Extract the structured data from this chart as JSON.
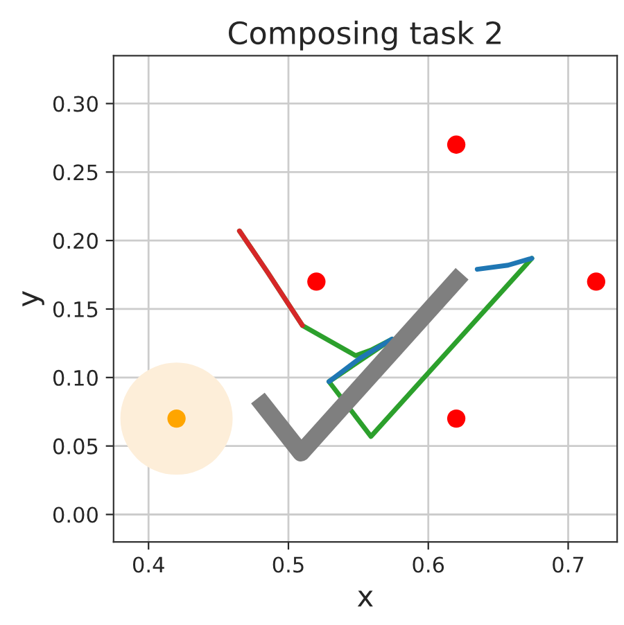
{
  "chart_data": {
    "type": "line",
    "title": "Composing task 2",
    "xlabel": "x",
    "ylabel": "y",
    "xlim": [
      0.375,
      0.735
    ],
    "ylim": [
      -0.02,
      0.335
    ],
    "xticks": [
      {
        "value": 0.4,
        "label": "0.4"
      },
      {
        "value": 0.5,
        "label": "0.5"
      },
      {
        "value": 0.6,
        "label": "0.6"
      },
      {
        "value": 0.7,
        "label": "0.7"
      }
    ],
    "yticks": [
      {
        "value": 0.0,
        "label": "0.00"
      },
      {
        "value": 0.05,
        "label": "0.05"
      },
      {
        "value": 0.1,
        "label": "0.10"
      },
      {
        "value": 0.15,
        "label": "0.15"
      },
      {
        "value": 0.2,
        "label": "0.20"
      },
      {
        "value": 0.25,
        "label": "0.25"
      },
      {
        "value": 0.3,
        "label": "0.30"
      }
    ],
    "grid": true,
    "series": [
      {
        "type": "bubble",
        "color": "#fdeed9",
        "x": [
          0.42
        ],
        "values": [
          0.07
        ],
        "sizes": [
          1
        ]
      },
      {
        "color": "#2ca02c",
        "x": [
          0.465,
          0.485,
          0.51,
          0.548,
          0.559,
          0.574,
          0.529,
          0.559,
          0.674
        ],
        "values": [
          0.207,
          0.177,
          0.138,
          0.116,
          0.12,
          0.128,
          0.097,
          0.057,
          0.187
        ]
      },
      {
        "color": "#d62728",
        "x": [
          0.465,
          0.485,
          0.51
        ],
        "values": [
          0.207,
          0.177,
          0.138
        ]
      },
      {
        "color": "#1f77b4",
        "x": [
          0.529,
          0.551,
          0.574,
          null,
          0.635,
          0.657,
          0.674
        ],
        "values": [
          0.097,
          0.114,
          0.128,
          null,
          0.179,
          0.182,
          0.187
        ]
      },
      {
        "color": "#7f7f7f",
        "x": [
          0.482,
          0.509,
          0.62
        ],
        "values": [
          0.08,
          0.045,
          0.171
        ]
      },
      {
        "type": "scatter",
        "color": "#ff0000",
        "x": [
          0.52,
          0.62,
          0.72,
          0.62
        ],
        "values": [
          0.17,
          0.27,
          0.17,
          0.07
        ]
      },
      {
        "type": "scatter",
        "color": "#ffa500",
        "x": [
          0.42
        ],
        "values": [
          0.07
        ]
      }
    ]
  }
}
